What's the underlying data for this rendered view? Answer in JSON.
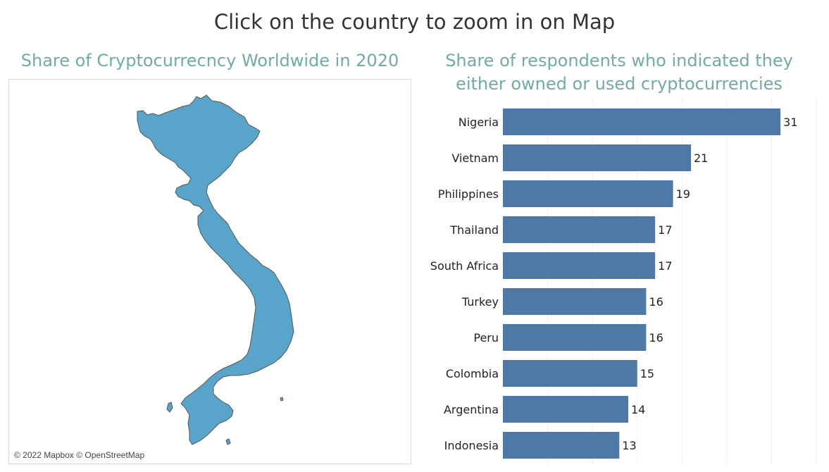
{
  "title": "Click on the country to zoom in on Map",
  "map": {
    "title": "Share of Cryptocurrecncy Worldwide in 2020",
    "credit": "© 2022 Mapbox © OpenStreetMap",
    "country_fill": "#58a4cb",
    "country_stroke": "#555555"
  },
  "chart_data": {
    "type": "bar",
    "orientation": "horizontal",
    "title": "Share of respondents who indicated they either owned or used cryptocurrencies",
    "categories": [
      "Nigeria",
      "Vietnam",
      "Philippines",
      "Thailand",
      "South Africa",
      "Turkey",
      "Peru",
      "Colombia",
      "Argentina",
      "Indonesia"
    ],
    "values": [
      31,
      21,
      19,
      17,
      17,
      16,
      16,
      15,
      14,
      13
    ],
    "xlim": [
      0,
      35
    ],
    "grid": true,
    "bar_color": "#4e78a6",
    "xlabel": "",
    "ylabel": ""
  }
}
